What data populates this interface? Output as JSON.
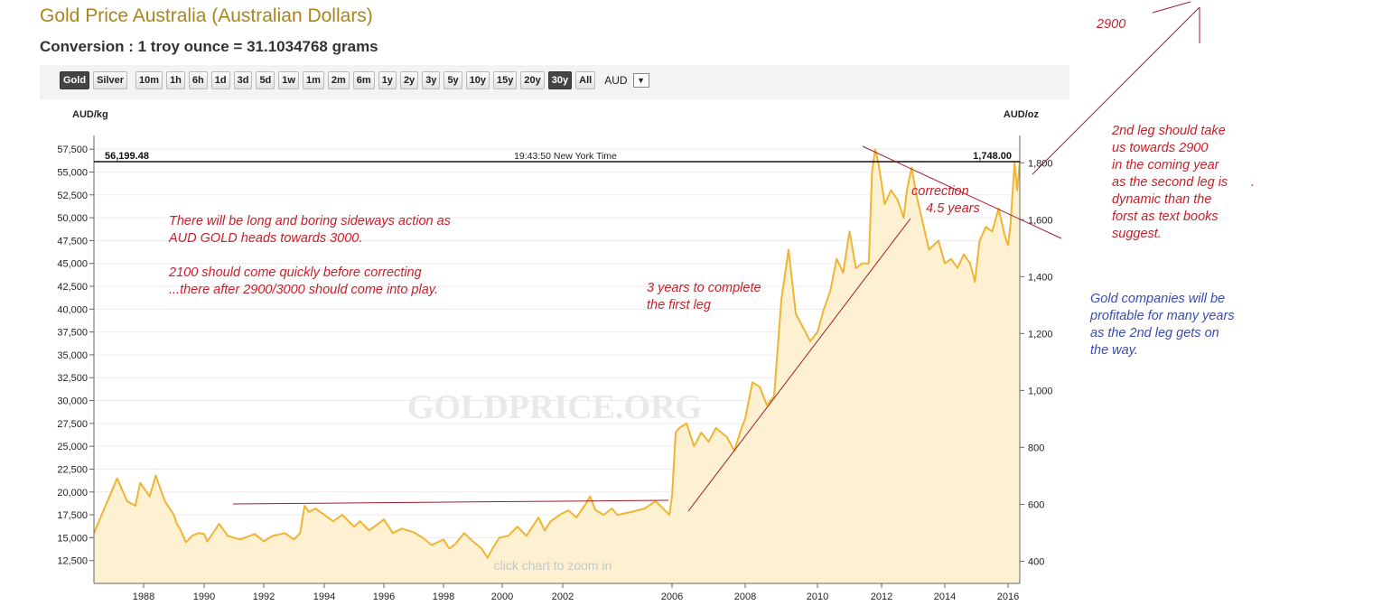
{
  "header": {
    "title": "Gold Price Australia (Australian Dollars)",
    "subtitle": "Conversion : 1 troy ounce = 31.1034768 grams"
  },
  "toolbar": {
    "buttons": [
      "Gold",
      "Silver",
      "10m",
      "1h",
      "6h",
      "1d",
      "3d",
      "5d",
      "1w",
      "1m",
      "2m",
      "6m",
      "1y",
      "2y",
      "3y",
      "5y",
      "10y",
      "15y",
      "20y",
      "30y",
      "All"
    ],
    "active": [
      "Gold",
      "30y"
    ],
    "currency": "AUD"
  },
  "chart_info": {
    "left_unit": "AUD/kg",
    "right_unit": "AUD/oz",
    "current_kg": "56,199.48",
    "current_oz": "1,748.00",
    "time": "19:43:50 New York Time",
    "watermark": "GOLDPRICE.ORG",
    "hint": "click chart to zoom in"
  },
  "annotations": {
    "sideways": "There will be long and boring sideways action as\nAUD GOLD heads towards 3000.\n\n2100 should come quickly before correcting\n...there after 2900/3000 should come into play.",
    "first_leg": "3 years to complete\nthe first leg",
    "correction": "correction\n    4.5 years",
    "target": "2900",
    "second_leg": "2nd leg should take\nus towards 2900\nin the coming year\nas the second leg is\ndynamic than the\nforst as text books\nsuggest.",
    "second_leg_dot": ".",
    "companies": "Gold companies will be\nprofitable for many years\nas the 2nd leg gets on\nthe way."
  },
  "colors": {
    "title": "#a8861c",
    "line": "#f0b433",
    "fill": "#fdf1d2",
    "annotation": "#c8202a",
    "annotation_blue": "#3a4db0"
  },
  "chart_data": {
    "type": "area",
    "title": "Gold Price Australia (Australian Dollars)",
    "ylabel": "AUD/kg",
    "y2label": "AUD/oz",
    "ylim": [
      10000,
      59000
    ],
    "y2lim": [
      322,
      1896
    ],
    "xlim": [
      1986.5,
      2016.45
    ],
    "x_ticks": [
      "1988",
      "1990",
      "1992",
      "1994",
      "1996",
      "1998",
      "2000",
      "2002",
      "2006",
      "2008",
      "2010",
      "2012",
      "2014",
      "2016"
    ],
    "y_ticks": [
      "12,500",
      "15,000",
      "17,500",
      "20,000",
      "22,500",
      "25,000",
      "27,500",
      "30,000",
      "32,500",
      "35,000",
      "37,500",
      "40,000",
      "42,500",
      "45,000",
      "47,500",
      "50,000",
      "52,500",
      "55,000",
      "57,500"
    ],
    "y2_ticks": [
      "400",
      "600",
      "800",
      "1,000",
      "1,200",
      "1,400",
      "1,600",
      "1,800"
    ],
    "series": [
      {
        "name": "Gold",
        "x": [
          1986.5,
          1986.85,
          1987.2,
          1987.5,
          1987.75,
          1987.9,
          1988.2,
          1988.4,
          1988.7,
          1989.0,
          1989.1,
          1989.2,
          1989.4,
          1989.6,
          1989.8,
          1990.0,
          1990.1,
          1990.3,
          1990.5,
          1990.8,
          1991.2,
          1991.7,
          1992.0,
          1992.3,
          1992.7,
          1993.0,
          1993.2,
          1993.35,
          1993.5,
          1993.7,
          1994.0,
          1994.3,
          1994.6,
          1995.0,
          1995.2,
          1995.5,
          1995.8,
          1996.0,
          1996.3,
          1996.6,
          1997.0,
          1997.3,
          1997.6,
          1998.0,
          1998.2,
          1998.4,
          1998.7,
          1999.0,
          1999.3,
          1999.5,
          1999.7,
          1999.9,
          2000.2,
          2000.5,
          2000.8,
          2001.0,
          2001.2,
          2001.4,
          2001.6,
          2001.9,
          2002.2,
          2002.5,
          2002.8,
          2003.0,
          2003.2,
          2003.5,
          2003.8,
          2004.0,
          2004.5,
          2005.0,
          2005.4,
          2005.9,
          2006.0,
          2006.1,
          2006.2,
          2006.4,
          2006.6,
          2006.8,
          2007.0,
          2007.2,
          2007.5,
          2007.7,
          2007.9,
          2008.0,
          2008.2,
          2008.4,
          2008.6,
          2008.8,
          2009.0,
          2009.2,
          2009.4,
          2009.6,
          2009.8,
          2010.0,
          2010.2,
          2010.4,
          2010.6,
          2010.8,
          2011.0,
          2011.2,
          2011.4,
          2011.6,
          2011.7,
          2011.8,
          2011.9,
          2012.1,
          2012.3,
          2012.5,
          2012.7,
          2012.8,
          2012.95,
          2013.1,
          2013.3,
          2013.5,
          2013.8,
          2014.0,
          2014.2,
          2014.4,
          2014.6,
          2014.8,
          2014.95,
          2015.1,
          2015.3,
          2015.5,
          2015.7,
          2015.9,
          2016.0,
          2016.1,
          2016.25,
          2016.35,
          2016.45
        ],
        "y": [
          15500,
          18500,
          21500,
          19000,
          18500,
          21000,
          19500,
          21800,
          19000,
          17500,
          16500,
          16000,
          14500,
          15200,
          15500,
          15400,
          14600,
          15500,
          16500,
          15200,
          14800,
          15400,
          14600,
          15200,
          15500,
          14800,
          15500,
          18500,
          17800,
          18200,
          17500,
          16800,
          17500,
          16200,
          16800,
          15800,
          16500,
          17000,
          15500,
          16000,
          15600,
          15000,
          14200,
          14800,
          13800,
          14300,
          15500,
          14600,
          13800,
          12800,
          14000,
          15000,
          15200,
          16200,
          15200,
          16200,
          17200,
          15800,
          16800,
          17500,
          18000,
          17200,
          18500,
          19500,
          18000,
          17500,
          18200,
          17500,
          17800,
          18200,
          19000,
          17500,
          19500,
          26500,
          27000,
          27500,
          25000,
          26500,
          25500,
          27000,
          26000,
          24500,
          27000,
          28000,
          32000,
          31500,
          29500,
          30500,
          41000,
          46500,
          39500,
          38000,
          36500,
          37500,
          40000,
          42000,
          45500,
          44000,
          48500,
          44500,
          45000,
          45000,
          55000,
          57500,
          56000,
          51500,
          53000,
          52000,
          50000,
          53000,
          55500,
          52500,
          49500,
          46500,
          47500,
          45000,
          45500,
          44500,
          46000,
          45000,
          43000,
          47500,
          49000,
          48500,
          51000,
          48000,
          47000,
          49500,
          56000,
          53000,
          56200
        ]
      }
    ],
    "current_value_kg": 56199.48,
    "current_value_oz": 1748.0
  }
}
